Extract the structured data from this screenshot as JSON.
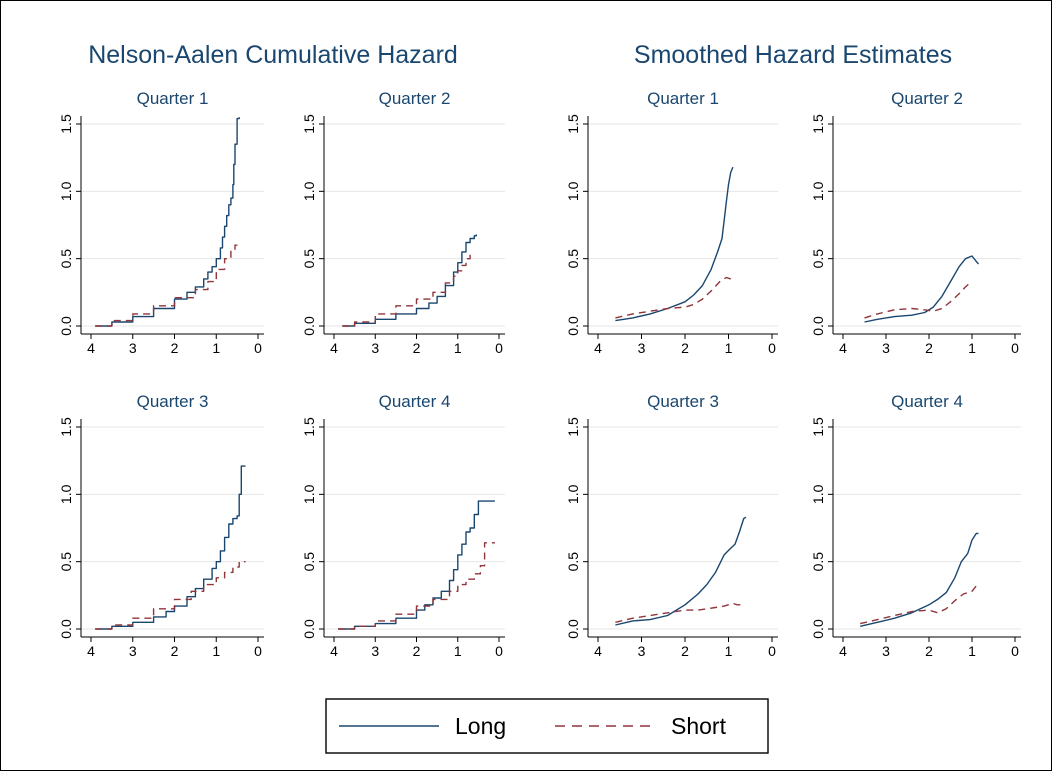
{
  "figure": {
    "group_titles": [
      "Nelson-Aalen Cumulative Hazard",
      "Smoothed Hazard Estimates"
    ],
    "colors": {
      "long": "#1a476f",
      "short": "#90353b",
      "grid": "#e6e6e6",
      "axis": "#000000"
    },
    "legend": {
      "placement": "bottom-center",
      "entries": [
        "Long",
        "Short"
      ]
    }
  },
  "chart_data": [
    {
      "type": "line",
      "group": "Nelson-Aalen Cumulative Hazard",
      "title": "Quarter 1",
      "xlim": [
        4,
        0
      ],
      "ylim": [
        0,
        1.5
      ],
      "xticks": [
        4,
        3,
        2,
        1,
        0
      ],
      "yticks": [
        "0.0",
        "0.5",
        "1.0",
        "1.5"
      ],
      "step": true,
      "series": [
        {
          "name": "Long",
          "style": "solid",
          "x": [
            3.9,
            3.5,
            3.0,
            2.5,
            2.0,
            1.7,
            1.5,
            1.3,
            1.2,
            1.1,
            1.0,
            0.9,
            0.85,
            0.8,
            0.75,
            0.7,
            0.65,
            0.6,
            0.58,
            0.55,
            0.5,
            0.45
          ],
          "y": [
            0.0,
            0.03,
            0.07,
            0.13,
            0.2,
            0.25,
            0.29,
            0.35,
            0.4,
            0.44,
            0.5,
            0.58,
            0.66,
            0.74,
            0.82,
            0.9,
            0.95,
            1.05,
            1.2,
            1.35,
            1.54,
            1.55
          ]
        },
        {
          "name": "Short",
          "style": "dashed",
          "x": [
            3.9,
            3.5,
            3.0,
            2.5,
            2.0,
            1.5,
            1.2,
            1.0,
            0.8,
            0.65,
            0.55,
            0.45
          ],
          "y": [
            0.0,
            0.04,
            0.09,
            0.15,
            0.21,
            0.27,
            0.33,
            0.42,
            0.5,
            0.56,
            0.6,
            0.6
          ]
        }
      ]
    },
    {
      "type": "line",
      "group": "Nelson-Aalen Cumulative Hazard",
      "title": "Quarter 2",
      "xlim": [
        4,
        0
      ],
      "ylim": [
        0,
        1.5
      ],
      "xticks": [
        4,
        3,
        2,
        1,
        0
      ],
      "yticks": [
        "0.0",
        "0.5",
        "1.0",
        "1.5"
      ],
      "step": true,
      "series": [
        {
          "name": "Long",
          "style": "solid",
          "x": [
            3.8,
            3.5,
            3.0,
            2.5,
            2.0,
            1.7,
            1.5,
            1.3,
            1.1,
            1.0,
            0.9,
            0.8,
            0.7,
            0.6,
            0.55
          ],
          "y": [
            0.0,
            0.02,
            0.05,
            0.09,
            0.13,
            0.17,
            0.22,
            0.3,
            0.4,
            0.47,
            0.55,
            0.62,
            0.65,
            0.67,
            0.68
          ]
        },
        {
          "name": "Short",
          "style": "dashed",
          "x": [
            3.8,
            3.5,
            3.0,
            2.5,
            2.0,
            1.6,
            1.3,
            1.1,
            1.0,
            0.9,
            0.8,
            0.7,
            0.65
          ],
          "y": [
            0.0,
            0.03,
            0.09,
            0.15,
            0.2,
            0.25,
            0.32,
            0.37,
            0.41,
            0.45,
            0.5,
            0.53,
            0.55
          ]
        }
      ]
    },
    {
      "type": "line",
      "group": "Smoothed Hazard Estimates",
      "title": "Quarter 1",
      "xlim": [
        4,
        0
      ],
      "ylim": [
        0,
        1.5
      ],
      "xticks": [
        4,
        3,
        2,
        1,
        0
      ],
      "yticks": [
        "0.0",
        "0.5",
        "1.0",
        "1.5"
      ],
      "series": [
        {
          "name": "Long",
          "style": "solid",
          "x": [
            3.6,
            3.2,
            2.8,
            2.4,
            2.0,
            1.8,
            1.6,
            1.4,
            1.25,
            1.15,
            1.1,
            1.05,
            1.0,
            0.95,
            0.9
          ],
          "y": [
            0.04,
            0.06,
            0.09,
            0.13,
            0.18,
            0.23,
            0.3,
            0.42,
            0.55,
            0.65,
            0.78,
            0.92,
            1.05,
            1.14,
            1.18
          ]
        },
        {
          "name": "Short",
          "style": "dashed",
          "x": [
            3.6,
            3.2,
            2.8,
            2.4,
            2.0,
            1.8,
            1.6,
            1.4,
            1.2,
            1.05,
            0.95,
            0.9
          ],
          "y": [
            0.06,
            0.09,
            0.11,
            0.13,
            0.14,
            0.16,
            0.2,
            0.26,
            0.33,
            0.36,
            0.35,
            0.34
          ]
        }
      ]
    },
    {
      "type": "line",
      "group": "Smoothed Hazard Estimates",
      "title": "Quarter 2",
      "xlim": [
        4,
        0
      ],
      "ylim": [
        0,
        1.5
      ],
      "xticks": [
        4,
        3,
        2,
        1,
        0
      ],
      "yticks": [
        "0.0",
        "0.5",
        "1.0",
        "1.5"
      ],
      "series": [
        {
          "name": "Long",
          "style": "solid",
          "x": [
            3.5,
            3.2,
            2.8,
            2.4,
            2.1,
            1.9,
            1.7,
            1.5,
            1.3,
            1.15,
            1.0,
            0.9,
            0.85
          ],
          "y": [
            0.03,
            0.05,
            0.07,
            0.08,
            0.1,
            0.14,
            0.22,
            0.33,
            0.44,
            0.5,
            0.52,
            0.48,
            0.46
          ]
        },
        {
          "name": "Short",
          "style": "dashed",
          "x": [
            3.5,
            3.2,
            2.8,
            2.4,
            2.1,
            1.9,
            1.7,
            1.5,
            1.3,
            1.15,
            1.05
          ],
          "y": [
            0.06,
            0.09,
            0.12,
            0.13,
            0.12,
            0.11,
            0.13,
            0.18,
            0.24,
            0.29,
            0.32
          ]
        }
      ]
    },
    {
      "type": "line",
      "group": "Nelson-Aalen Cumulative Hazard",
      "title": "Quarter 3",
      "xlim": [
        4,
        0
      ],
      "ylim": [
        0,
        1.5
      ],
      "xticks": [
        4,
        3,
        2,
        1,
        0
      ],
      "yticks": [
        "0.0",
        "0.5",
        "1.0",
        "1.5"
      ],
      "step": true,
      "series": [
        {
          "name": "Long",
          "style": "solid",
          "x": [
            3.9,
            3.5,
            3.0,
            2.5,
            2.2,
            2.0,
            1.7,
            1.5,
            1.3,
            1.1,
            1.0,
            0.9,
            0.8,
            0.7,
            0.6,
            0.5,
            0.45,
            0.4,
            0.3
          ],
          "y": [
            0.0,
            0.02,
            0.05,
            0.09,
            0.13,
            0.17,
            0.24,
            0.3,
            0.37,
            0.45,
            0.5,
            0.58,
            0.68,
            0.78,
            0.82,
            0.84,
            1.0,
            1.21,
            1.21
          ]
        },
        {
          "name": "Short",
          "style": "dashed",
          "x": [
            3.9,
            3.5,
            3.0,
            2.5,
            2.0,
            1.6,
            1.3,
            1.0,
            0.8,
            0.6,
            0.45,
            0.3
          ],
          "y": [
            0.0,
            0.03,
            0.08,
            0.15,
            0.22,
            0.28,
            0.33,
            0.38,
            0.42,
            0.46,
            0.5,
            0.5
          ]
        }
      ]
    },
    {
      "type": "line",
      "group": "Nelson-Aalen Cumulative Hazard",
      "title": "Quarter 4",
      "xlim": [
        4,
        0
      ],
      "ylim": [
        0,
        1.5
      ],
      "xticks": [
        4,
        3,
        2,
        1,
        0
      ],
      "yticks": [
        "0.0",
        "0.5",
        "1.0",
        "1.5"
      ],
      "step": true,
      "series": [
        {
          "name": "Long",
          "style": "solid",
          "x": [
            3.9,
            3.5,
            3.0,
            2.5,
            2.0,
            1.8,
            1.6,
            1.4,
            1.2,
            1.1,
            1.0,
            0.9,
            0.8,
            0.7,
            0.6,
            0.5,
            0.3,
            0.2,
            0.1
          ],
          "y": [
            0.0,
            0.02,
            0.04,
            0.08,
            0.14,
            0.18,
            0.23,
            0.28,
            0.36,
            0.44,
            0.55,
            0.63,
            0.72,
            0.75,
            0.85,
            0.95,
            0.95,
            0.95,
            0.95
          ]
        },
        {
          "name": "Short",
          "style": "dashed",
          "x": [
            3.9,
            3.5,
            3.0,
            2.5,
            2.0,
            1.6,
            1.2,
            1.0,
            0.8,
            0.6,
            0.45,
            0.35,
            0.3,
            0.1
          ],
          "y": [
            0.0,
            0.02,
            0.06,
            0.11,
            0.17,
            0.22,
            0.28,
            0.33,
            0.37,
            0.41,
            0.47,
            0.64,
            0.64,
            0.64
          ]
        }
      ]
    },
    {
      "type": "line",
      "group": "Smoothed Hazard Estimates",
      "title": "Quarter 3",
      "xlim": [
        4,
        0
      ],
      "ylim": [
        0,
        1.5
      ],
      "xticks": [
        4,
        3,
        2,
        1,
        0
      ],
      "yticks": [
        "0.0",
        "0.5",
        "1.0",
        "1.5"
      ],
      "series": [
        {
          "name": "Long",
          "style": "solid",
          "x": [
            3.6,
            3.2,
            2.8,
            2.4,
            2.0,
            1.7,
            1.5,
            1.3,
            1.1,
            0.95,
            0.85,
            0.75,
            0.65,
            0.6
          ],
          "y": [
            0.03,
            0.06,
            0.07,
            0.1,
            0.18,
            0.26,
            0.33,
            0.42,
            0.55,
            0.6,
            0.63,
            0.72,
            0.82,
            0.83
          ]
        },
        {
          "name": "Short",
          "style": "dashed",
          "x": [
            3.6,
            3.2,
            2.8,
            2.4,
            2.0,
            1.7,
            1.5,
            1.3,
            1.1,
            0.9,
            0.8,
            0.7
          ],
          "y": [
            0.05,
            0.08,
            0.1,
            0.12,
            0.14,
            0.14,
            0.15,
            0.16,
            0.17,
            0.19,
            0.18,
            0.18
          ]
        }
      ]
    },
    {
      "type": "line",
      "group": "Smoothed Hazard Estimates",
      "title": "Quarter 4",
      "xlim": [
        4,
        0
      ],
      "ylim": [
        0,
        1.5
      ],
      "xticks": [
        4,
        3,
        2,
        1,
        0
      ],
      "yticks": [
        "0.0",
        "0.5",
        "1.0",
        "1.5"
      ],
      "series": [
        {
          "name": "Long",
          "style": "solid",
          "x": [
            3.6,
            3.2,
            2.8,
            2.4,
            2.0,
            1.8,
            1.6,
            1.4,
            1.25,
            1.1,
            1.0,
            0.9,
            0.85
          ],
          "y": [
            0.02,
            0.05,
            0.08,
            0.12,
            0.18,
            0.22,
            0.27,
            0.38,
            0.5,
            0.56,
            0.66,
            0.71,
            0.71
          ]
        },
        {
          "name": "Short",
          "style": "dashed",
          "x": [
            3.6,
            3.2,
            2.8,
            2.4,
            2.0,
            1.8,
            1.6,
            1.4,
            1.2,
            1.0,
            0.9,
            0.85
          ],
          "y": [
            0.04,
            0.07,
            0.1,
            0.13,
            0.14,
            0.12,
            0.15,
            0.21,
            0.26,
            0.28,
            0.32,
            0.32
          ]
        }
      ]
    }
  ]
}
